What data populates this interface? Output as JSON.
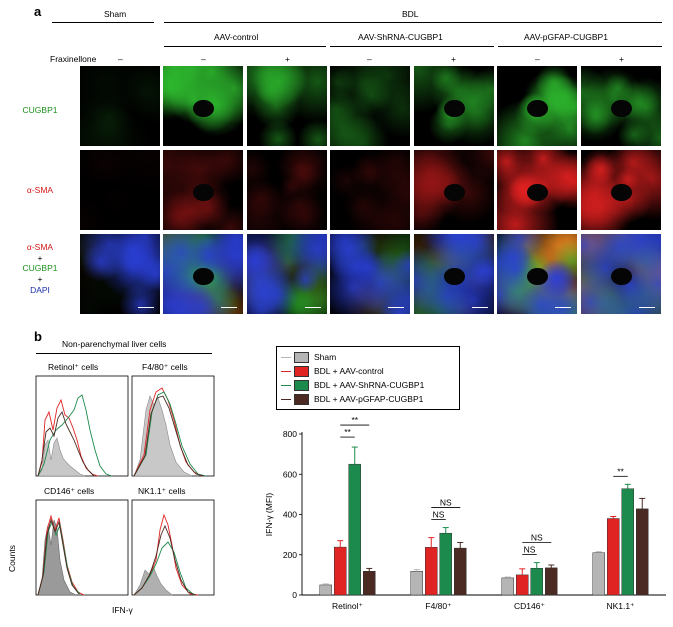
{
  "panel_a": {
    "panel_label": "a",
    "group_sham": "Sham",
    "group_bdl": "BDL",
    "conditions": [
      "AAV-control",
      "AAV-ShRNA-CUGBP1",
      "AAV-pGFAP-CUGBP1"
    ],
    "fraxinellone_label": "Fraxinellone",
    "fraxinellone_values": [
      "–",
      "–",
      "+",
      "–",
      "+",
      "–",
      "+"
    ],
    "rows": [
      {
        "label": "CUGBP1",
        "color": "#1a8f1a"
      },
      {
        "label": "α-SMA",
        "color": "#d01818"
      }
    ],
    "merge_row": {
      "line1": "α-SMA",
      "line2": "+",
      "line3": "CUGBP1",
      "line4": "+",
      "line5": "DAPI"
    },
    "merge_colors": {
      "sma": "#d01818",
      "cugbp1": "#1a8f1a",
      "dapi": "#1a2fa8"
    }
  },
  "panel_b": {
    "panel_label": "b",
    "header": "Non-parenchymal liver cells",
    "histograms": [
      {
        "title": "Retinol⁺ cells"
      },
      {
        "title": "F4/80⁺ cells"
      },
      {
        "title": "CD146⁺ cells"
      },
      {
        "title": "NK1.1⁺ cells"
      }
    ],
    "hist_ylabel": "Counts",
    "hist_xlabel": "IFN-γ"
  },
  "chart_data": {
    "type": "bar",
    "ylabel": "IFN-γ (MFI)",
    "ylim": [
      0,
      800
    ],
    "yticks": [
      "0",
      "200",
      "400",
      "600",
      "800"
    ],
    "categories": [
      "Retinol⁺",
      "F4/80⁺",
      "CD146⁺",
      "NK1.1⁺"
    ],
    "series": [
      {
        "name": "Sham",
        "color": "#b5b5b5",
        "values": [
          50,
          118,
          85,
          210
        ],
        "errors": [
          5,
          8,
          4,
          5
        ]
      },
      {
        "name": "BDL + AAV-control",
        "color": "#e02424",
        "values": [
          238,
          237,
          100,
          380
        ],
        "errors": [
          32,
          48,
          30,
          10
        ]
      },
      {
        "name": "BDL + AAV-ShRNA-CUGBP1",
        "color": "#1c8a4c",
        "values": [
          650,
          307,
          133,
          528
        ],
        "errors": [
          85,
          28,
          28,
          22
        ]
      },
      {
        "name": "BDL + AAV-pGFAP-CUGBP1",
        "color": "#4a2a22",
        "values": [
          118,
          233,
          135,
          428
        ],
        "errors": [
          14,
          28,
          14,
          52
        ]
      }
    ],
    "annotations": [
      {
        "text": "**",
        "category": 0,
        "from": 1,
        "to": 2
      },
      {
        "text": "**",
        "category": 0,
        "from": 1,
        "to": 3
      },
      {
        "text": "NS",
        "category": 1,
        "from": 1,
        "to": 2
      },
      {
        "text": "NS",
        "category": 1,
        "from": 1,
        "to": 3
      },
      {
        "text": "NS",
        "category": 2,
        "from": 1,
        "to": 2
      },
      {
        "text": "NS",
        "category": 2,
        "from": 1,
        "to": 3
      },
      {
        "text": "**",
        "category": 3,
        "from": 1,
        "to": 2
      }
    ],
    "legend_position": "top-left"
  }
}
